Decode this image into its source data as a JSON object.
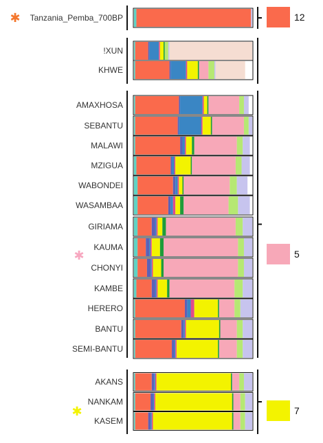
{
  "chart_data": {
    "type": "bar",
    "orientation": "horizontal",
    "stacked": true,
    "normalized": true,
    "components": [
      {
        "id": "c1",
        "color": "#5fd3c4"
      },
      {
        "id": "c2",
        "color": "#fa6a4c"
      },
      {
        "id": "c3",
        "color": "#5b62b8"
      },
      {
        "id": "c4",
        "color": "#3a86c4"
      },
      {
        "id": "c5",
        "color": "#e04c8c"
      },
      {
        "id": "c6",
        "color": "#f3f300"
      },
      {
        "id": "c7",
        "color": "#1e9c3a"
      },
      {
        "id": "c8",
        "color": "#f7a8b8"
      },
      {
        "id": "c9",
        "color": "#b6e873"
      },
      {
        "id": "c10",
        "color": "#c7c4ee"
      },
      {
        "id": "c11",
        "color": "#f5ddd2"
      }
    ],
    "groups": [
      {
        "key": "g1",
        "highlight": true,
        "marker_color": "#f4772d",
        "samples": [
          {
            "label": "Tanzania_Pemba_700BP",
            "marked": true,
            "values": [
              0.02,
              0.97,
              0,
              0,
              0,
              0,
              0,
              0,
              0,
              0.01,
              0
            ]
          }
        ]
      },
      {
        "key": "g2",
        "samples": [
          {
            "label": "!XUN",
            "values": [
              0.01,
              0.11,
              0.01,
              0.08,
              0.01,
              0.03,
              0.01,
              0,
              0.03,
              0.01,
              0.7
            ]
          },
          {
            "label": "KHWE",
            "values": [
              0.01,
              0.29,
              0.01,
              0.13,
              0.01,
              0.09,
              0.01,
              0.08,
              0.05,
              0.01,
              0.25
            ]
          }
        ]
      },
      {
        "key": "g3",
        "marker_color": "#f7a8c0",
        "samples": [
          {
            "label": "AMAXHOSA",
            "values": [
              0.01,
              0.37,
              0.01,
              0.19,
              0.01,
              0.03,
              0.01,
              0.26,
              0.04,
              0.04,
              0
            ]
          },
          {
            "label": "SEBANTU",
            "values": [
              0.01,
              0.36,
              0.01,
              0.19,
              0.01,
              0.07,
              0.01,
              0.27,
              0.04,
              0.03,
              0
            ]
          },
          {
            "label": "MALAWI",
            "values": [
              0.01,
              0.38,
              0.02,
              0.02,
              0.01,
              0.05,
              0.02,
              0.36,
              0.05,
              0.06,
              0
            ]
          },
          {
            "label": "MZIGUA",
            "values": [
              0.02,
              0.29,
              0.01,
              0.02,
              0.01,
              0.13,
              0.01,
              0.37,
              0.05,
              0.07,
              0
            ]
          },
          {
            "label": "WABONDEI",
            "values": [
              0.03,
              0.3,
              0.02,
              0.02,
              0.01,
              0.03,
              0.01,
              0.39,
              0.06,
              0.09,
              0
            ]
          },
          {
            "label": "WASAMBAA",
            "values": [
              0.03,
              0.26,
              0.02,
              0.02,
              0.02,
              0.04,
              0.03,
              0.38,
              0.08,
              0.1,
              0
            ]
          },
          {
            "label": "GIRIAMA",
            "values": [
              0.03,
              0.12,
              0.03,
              0.01,
              0.01,
              0.04,
              0.03,
              0.59,
              0.06,
              0.08,
              0
            ]
          },
          {
            "label": "KAUMA",
            "values": [
              0.03,
              0.07,
              0.03,
              0.01,
              0.01,
              0.07,
              0.03,
              0.63,
              0.05,
              0.07,
              0
            ],
            "marked": true
          },
          {
            "label": "CHONYI",
            "values": [
              0.03,
              0.08,
              0.03,
              0.01,
              0.01,
              0.07,
              0.02,
              0.63,
              0.05,
              0.07,
              0
            ]
          },
          {
            "label": "KAMBE",
            "values": [
              0.02,
              0.13,
              0.03,
              0.01,
              0.01,
              0.08,
              0.02,
              0.55,
              0.07,
              0.08,
              0
            ]
          },
          {
            "label": "HERERO",
            "values": [
              0.01,
              0.42,
              0.02,
              0.03,
              0.03,
              0.2,
              0.01,
              0.13,
              0.05,
              0.1,
              0
            ]
          },
          {
            "label": "BANTU",
            "values": [
              0.01,
              0.39,
              0.02,
              0.01,
              0.01,
              0.28,
              0.01,
              0.14,
              0.05,
              0.08,
              0
            ]
          },
          {
            "label": "SEMI-BANTU",
            "values": [
              0.01,
              0.31,
              0.02,
              0.01,
              0.01,
              0.35,
              0.01,
              0.15,
              0.05,
              0.08,
              0
            ]
          }
        ]
      },
      {
        "key": "g4",
        "marker_color": "#f3f300",
        "samples": [
          {
            "label": "AKANS",
            "values": [
              0.01,
              0.14,
              0.02,
              0.01,
              0.01,
              0.63,
              0.01,
              0.06,
              0.04,
              0.07,
              0
            ]
          },
          {
            "label": "NANKAM",
            "values": [
              0.01,
              0.13,
              0.02,
              0.01,
              0.01,
              0.65,
              0.01,
              0.06,
              0.04,
              0.06,
              0
            ]
          },
          {
            "label": "KASEM",
            "values": [
              0.01,
              0.11,
              0.02,
              0.01,
              0.01,
              0.67,
              0.01,
              0.06,
              0.04,
              0.06,
              0
            ],
            "marked": true
          }
        ]
      }
    ],
    "legend_boxes": [
      {
        "label": "12",
        "color": "#fa6a4c"
      },
      {
        "label": "5",
        "color": "#f7a8b8"
      },
      {
        "label": "7",
        "color": "#f3f300"
      }
    ]
  }
}
